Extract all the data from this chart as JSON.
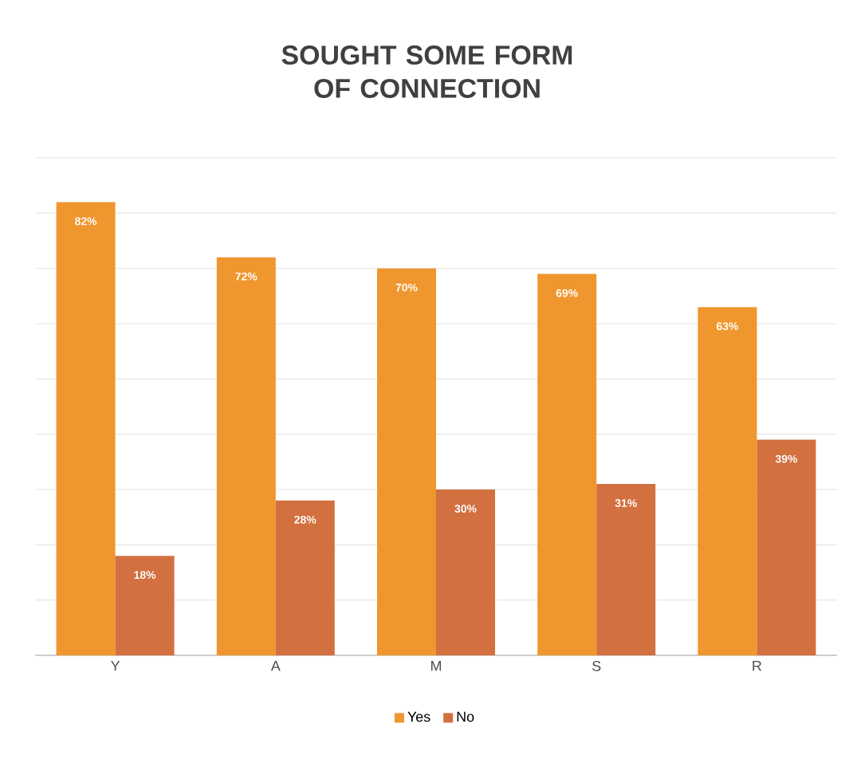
{
  "chart_data": {
    "type": "bar",
    "title": "SOUGHT SOME FORM OF CONNECTION",
    "categories": [
      "Y",
      "A",
      "M",
      "S",
      "R"
    ],
    "series": [
      {
        "name": "Yes",
        "color": "#f0962e",
        "values": [
          82,
          72,
          70,
          69,
          63
        ],
        "value_labels": [
          "82%",
          "72%",
          "70%",
          "69%",
          "63%"
        ]
      },
      {
        "name": "No",
        "color": "#d3703f",
        "values": [
          18,
          28,
          30,
          31,
          39
        ],
        "value_labels": [
          "18%",
          "28%",
          "30%",
          "31%",
          "39%"
        ]
      }
    ],
    "ylim": [
      0,
      90
    ],
    "yticks": [
      {
        "value": 0,
        "label": null
      },
      {
        "value": 10,
        "label": null
      },
      {
        "value": 20,
        "label": null
      },
      {
        "value": 30,
        "label": null
      },
      {
        "value": 40,
        "label": null
      },
      {
        "value": 50,
        "label": null
      },
      {
        "value": 60,
        "label": null
      },
      {
        "value": 70,
        "label": null
      },
      {
        "value": 80,
        "label": null
      },
      {
        "value": 90,
        "label": null
      }
    ],
    "grid": "y",
    "tick_labels": "x",
    "legend": "bottom"
  }
}
